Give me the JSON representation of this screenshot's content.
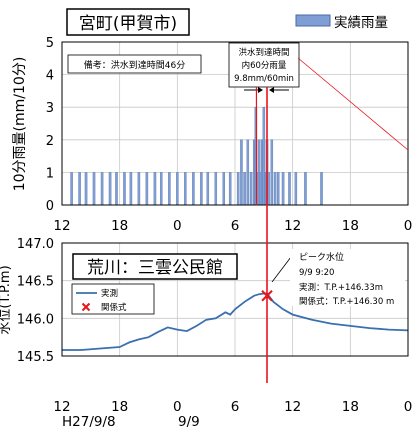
{
  "rainfall": {
    "station": "宮町(甲賀市)",
    "legend": "実績雨量",
    "ylabel": "10分雨量(mm/10分)",
    "note": "備考：洪水到達時間46分",
    "callout": [
      "洪水到達時間",
      "内60分雨量",
      "9.8mm/60min"
    ],
    "colors": {
      "bar": "#7f9fd4",
      "barEdge": "#4a6aa6",
      "redLine": "#e8141c"
    }
  },
  "level": {
    "station": "荒川：三雲公民館",
    "ylabel": "水位(T.P.m)",
    "legend_observed": "実測",
    "legend_relation": "関係式",
    "peak_lines": [
      "ピーク水位",
      "9/9 9:20",
      "実測：T.P.+146.33m",
      "関係式：T.P.+146.30 m"
    ],
    "colors": {
      "line": "#3a6fb0",
      "marker": "#e8141c"
    }
  },
  "xaxis": {
    "tick_labels": [
      "12",
      "18",
      "0",
      "6",
      "12",
      "18",
      "0"
    ],
    "dates": [
      "H27/9/8",
      "9/9"
    ]
  },
  "chart_data": [
    {
      "type": "bar",
      "title": "宮町(甲賀市)",
      "ylabel": "10分雨量(mm/10分)",
      "ylim": [
        0,
        5
      ],
      "yticks": [
        "0",
        "1",
        "2",
        "3",
        "4",
        "5"
      ],
      "x_unit": "hours from 2015/9/8 12:00",
      "xlim": [
        0,
        36
      ],
      "red_line_x": 21.33,
      "series": [
        {
          "name": "実績雨量",
          "x": [
            1.0,
            1.83,
            2.5,
            3.33,
            4.17,
            5.0,
            5.67,
            6.5,
            7.17,
            8.0,
            8.83,
            9.67,
            10.33,
            11.17,
            12.0,
            12.83,
            13.67,
            14.5,
            15.17,
            16.0,
            16.83,
            17.5,
            18.33,
            18.67,
            19.0,
            19.33,
            19.67,
            20.0,
            20.17,
            20.33,
            20.5,
            20.67,
            20.83,
            21.0,
            21.17,
            21.33,
            21.5,
            21.83,
            22.17,
            22.5,
            23.0,
            23.67,
            24.33,
            25.33,
            27.0
          ],
          "values": [
            1,
            1,
            1,
            1,
            1,
            1,
            1,
            1,
            1,
            1,
            1,
            1,
            1,
            1,
            1,
            1,
            1,
            1,
            1,
            1,
            1,
            1,
            1,
            2,
            1,
            2,
            1,
            2,
            3,
            1,
            2,
            1,
            2,
            3,
            1,
            2,
            1,
            2,
            1,
            1,
            1,
            1,
            1,
            1,
            1
          ]
        }
      ]
    },
    {
      "type": "line",
      "title": "荒川：三雲公民館",
      "ylabel": "水位(T.P.m)",
      "ylim": [
        145.5,
        147.0
      ],
      "yticks": [
        "145.5",
        "146.0",
        "146.5",
        "147.0"
      ],
      "x_unit": "hours from 2015/9/8 12:00",
      "xlim": [
        0,
        36
      ],
      "series": [
        {
          "name": "実測",
          "x": [
            0,
            2,
            4,
            6,
            7,
            8,
            9,
            10,
            11,
            12,
            13,
            14,
            15,
            16,
            17,
            17.5,
            18,
            19,
            20,
            20.5,
            21,
            21.33,
            22,
            23,
            24,
            26,
            28,
            30,
            32,
            34,
            36
          ],
          "y": [
            145.58,
            145.58,
            145.6,
            145.62,
            145.68,
            145.72,
            145.75,
            145.82,
            145.88,
            145.85,
            145.83,
            145.9,
            145.98,
            146.0,
            146.08,
            146.05,
            146.12,
            146.22,
            146.3,
            146.32,
            146.33,
            146.33,
            146.22,
            146.12,
            146.05,
            145.98,
            145.93,
            145.9,
            145.87,
            145.85,
            145.84
          ]
        },
        {
          "name": "関係式",
          "x": [
            21.33
          ],
          "y": [
            146.3
          ]
        }
      ]
    }
  ]
}
